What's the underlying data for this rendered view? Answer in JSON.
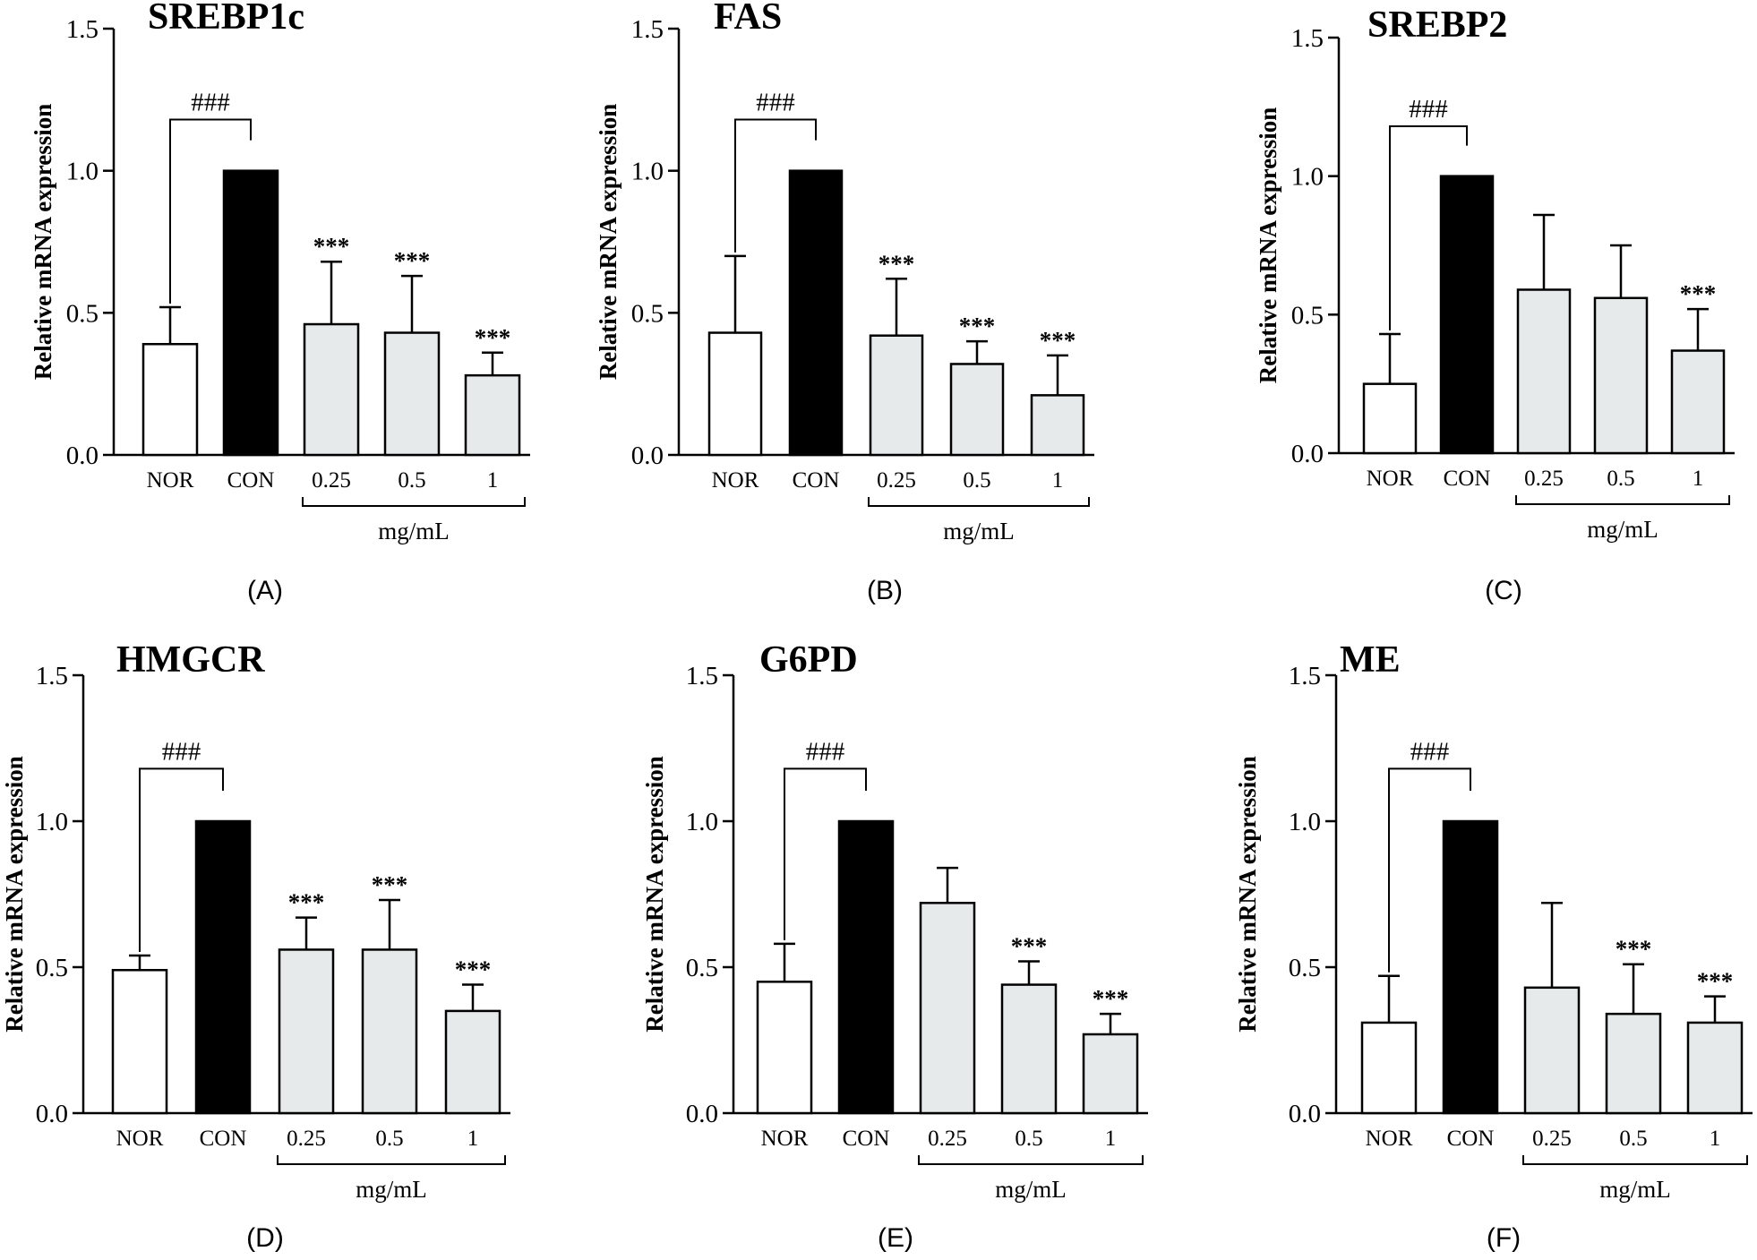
{
  "figure": {
    "x_unit": "mg/mL",
    "ylabel": "Relative mRNA expression",
    "bar_fill_colors": {
      "NOR": "#ffffff",
      "CON": "#000000",
      "treatment": "#e6eaea"
    }
  },
  "chart_data": [
    {
      "type": "bar",
      "panel": "(A)",
      "title": "SREBP1c",
      "xlabel": "mg/mL",
      "ylabel": "Relative mRNA expression",
      "ylim": [
        0,
        1.5
      ],
      "yticks": [
        "0.0",
        "0.5",
        "1.0",
        "1.5"
      ],
      "categories": [
        "NOR",
        "CON",
        "0.25",
        "0.5",
        "1"
      ],
      "values": [
        0.39,
        1.0,
        0.46,
        0.43,
        0.28
      ],
      "errors": [
        0.13,
        0.0,
        0.22,
        0.2,
        0.08
      ],
      "annotations": [
        "",
        "",
        "***",
        "***",
        "***"
      ],
      "comparison": "###"
    },
    {
      "type": "bar",
      "panel": "(B)",
      "title": "FAS",
      "xlabel": "mg/mL",
      "ylabel": "Relative mRNA expression",
      "ylim": [
        0,
        1.5
      ],
      "yticks": [
        "0.0",
        "0.5",
        "1.0",
        "1.5"
      ],
      "categories": [
        "NOR",
        "CON",
        "0.25",
        "0.5",
        "1"
      ],
      "values": [
        0.43,
        1.0,
        0.42,
        0.32,
        0.21
      ],
      "errors": [
        0.27,
        0.0,
        0.2,
        0.08,
        0.14
      ],
      "annotations": [
        "",
        "",
        "***",
        "***",
        "***"
      ],
      "comparison": "###"
    },
    {
      "type": "bar",
      "panel": "(C)",
      "title": "SREBP2",
      "xlabel": "mg/mL",
      "ylabel": "Relative mRNA expression",
      "ylim": [
        0,
        1.5
      ],
      "yticks": [
        "0.0",
        "0.5",
        "1.0",
        "1.5"
      ],
      "categories": [
        "NOR",
        "CON",
        "0.25",
        "0.5",
        "1"
      ],
      "values": [
        0.25,
        1.0,
        0.59,
        0.56,
        0.37
      ],
      "errors": [
        0.18,
        0.0,
        0.27,
        0.19,
        0.15
      ],
      "annotations": [
        "",
        "",
        "",
        "",
        "***"
      ],
      "comparison": "###"
    },
    {
      "type": "bar",
      "panel": "(D)",
      "title": "HMGCR",
      "xlabel": "mg/mL",
      "ylabel": "Relative mRNA expression",
      "ylim": [
        0,
        1.5
      ],
      "yticks": [
        "0.0",
        "0.5",
        "1.0",
        "1.5"
      ],
      "categories": [
        "NOR",
        "CON",
        "0.25",
        "0.5",
        "1"
      ],
      "values": [
        0.49,
        1.0,
        0.56,
        0.56,
        0.35
      ],
      "errors": [
        0.05,
        0.0,
        0.11,
        0.17,
        0.09
      ],
      "annotations": [
        "",
        "",
        "***",
        "***",
        "***"
      ],
      "comparison": "###"
    },
    {
      "type": "bar",
      "panel": "(E)",
      "title": "G6PD",
      "xlabel": "mg/mL",
      "ylabel": "Relative mRNA expression",
      "ylim": [
        0,
        1.5
      ],
      "yticks": [
        "0.0",
        "0.5",
        "1.0",
        "1.5"
      ],
      "categories": [
        "NOR",
        "CON",
        "0.25",
        "0.5",
        "1"
      ],
      "values": [
        0.45,
        1.0,
        0.72,
        0.44,
        0.27
      ],
      "errors": [
        0.13,
        0.0,
        0.12,
        0.08,
        0.07
      ],
      "annotations": [
        "",
        "",
        "",
        "***",
        "***"
      ],
      "comparison": "###"
    },
    {
      "type": "bar",
      "panel": "(F)",
      "title": "ME",
      "xlabel": "mg/mL",
      "ylabel": "Relative mRNA expression",
      "ylim": [
        0,
        1.5
      ],
      "yticks": [
        "0.0",
        "0.5",
        "1.0",
        "1.5"
      ],
      "categories": [
        "NOR",
        "CON",
        "0.25",
        "0.5",
        "1"
      ],
      "values": [
        0.31,
        1.0,
        0.43,
        0.34,
        0.31
      ],
      "errors": [
        0.16,
        0.0,
        0.29,
        0.17,
        0.09
      ],
      "annotations": [
        "",
        "",
        "",
        "***",
        "***"
      ],
      "comparison": "###"
    }
  ]
}
